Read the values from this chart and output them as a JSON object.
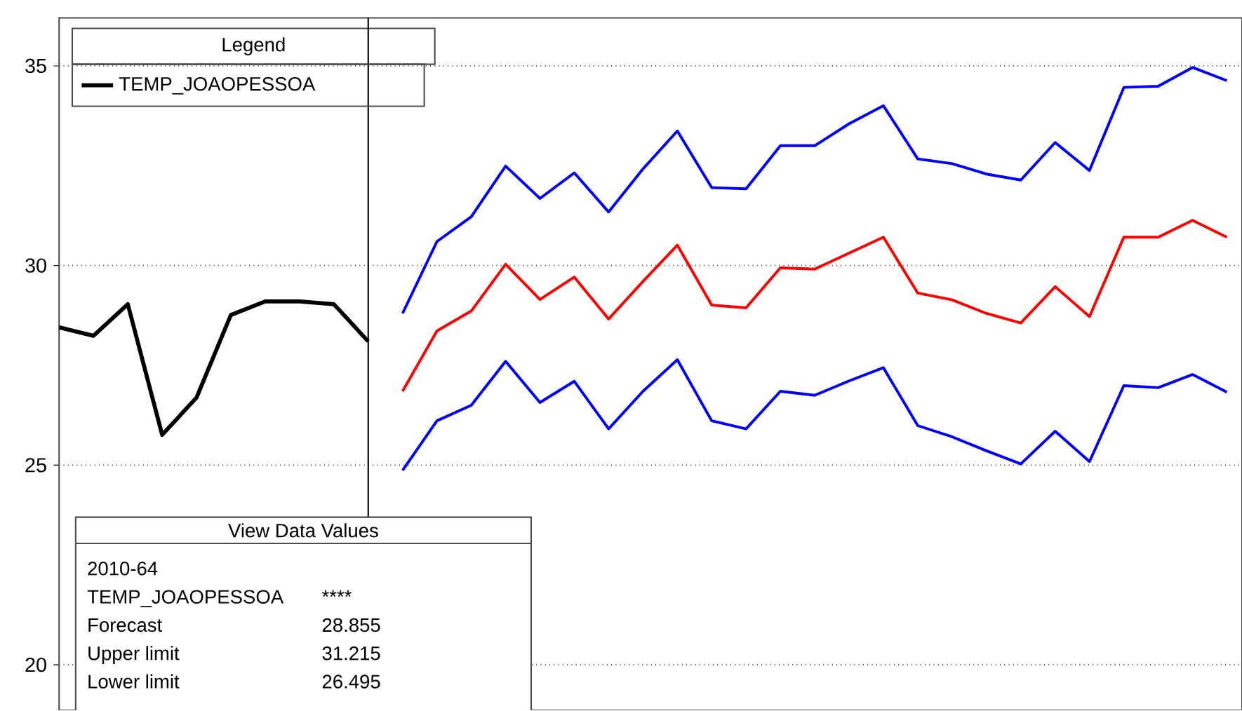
{
  "chart_data": {
    "type": "line",
    "categories": [
      null,
      null,
      null,
      null,
      null,
      null,
      null,
      null,
      null,
      null,
      null,
      null,
      null,
      null,
      null,
      null,
      null,
      null,
      null,
      null,
      null,
      null,
      null,
      null,
      null,
      null,
      null,
      null,
      null,
      null,
      null,
      null,
      null,
      null,
      null
    ],
    "series": [
      {
        "name": "TEMP_JOAOPESSOA",
        "color": "#000000",
        "values": [
          28.45,
          28.24,
          29.03,
          25.76,
          26.69,
          28.76,
          29.1,
          29.1,
          29.03,
          28.1,
          null,
          null,
          null,
          null,
          null,
          null,
          null,
          null,
          null,
          null,
          null,
          null,
          null,
          null,
          null,
          null,
          null,
          null,
          null,
          null,
          null,
          null,
          null,
          null,
          null
        ]
      },
      {
        "color": "#ff0000",
        "values": [
          null,
          null,
          null,
          null,
          null,
          null,
          null,
          null,
          null,
          null,
          26.85,
          28.36,
          28.86,
          30.03,
          29.15,
          29.71,
          28.66,
          29.6,
          30.51,
          29.01,
          28.94,
          29.94,
          29.91,
          30.31,
          30.71,
          29.31,
          29.14,
          28.8,
          28.56,
          29.47,
          28.72,
          30.71,
          30.71,
          31.13,
          30.71
        ]
      },
      {
        "color": "#0000ff",
        "values": [
          null,
          null,
          null,
          null,
          null,
          null,
          null,
          null,
          null,
          null,
          28.8,
          30.6,
          31.22,
          32.49,
          31.68,
          32.32,
          31.34,
          32.42,
          33.37,
          31.95,
          31.92,
          33.0,
          33.0,
          33.55,
          34.0,
          32.67,
          32.55,
          32.29,
          32.14,
          33.08,
          32.38,
          34.46,
          34.49,
          34.96,
          34.63
        ]
      },
      {
        "color": "#0000ff",
        "values": [
          null,
          null,
          null,
          null,
          null,
          null,
          null,
          null,
          null,
          null,
          24.87,
          26.11,
          26.5,
          27.6,
          26.57,
          27.1,
          25.91,
          26.85,
          27.64,
          26.11,
          25.91,
          26.85,
          26.75,
          27.11,
          27.44,
          25.99,
          25.71,
          25.36,
          25.03,
          25.85,
          25.09,
          26.99,
          26.94,
          27.27,
          26.83
        ]
      }
    ],
    "ylim": [
      18.86,
      36.2
    ],
    "yticks": [
      20,
      25,
      30,
      35
    ],
    "grid": "y",
    "tick_labels": "y",
    "legend": "top left",
    "legend_title": "Legend",
    "annotations": [
      "View Data Values",
      "2010-64",
      "TEMP_JOAOPESSOA",
      "****",
      "Forecast",
      "28.855",
      "Upper limit",
      "31.215",
      "Lower limit",
      "26.495"
    ]
  }
}
